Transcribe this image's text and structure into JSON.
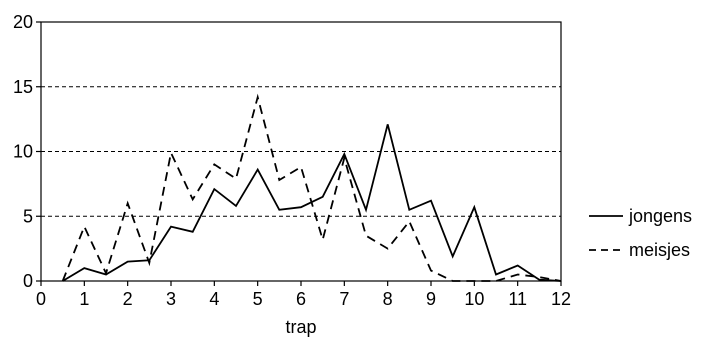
{
  "chart_data": {
    "type": "line",
    "title": "",
    "xlabel": "trap",
    "ylabel": "",
    "xlim": [
      0,
      12
    ],
    "ylim": [
      0,
      20
    ],
    "xticks": [
      "0",
      "1",
      "2",
      "3",
      "4",
      "5",
      "6",
      "7",
      "8",
      "9",
      "10",
      "11",
      "12"
    ],
    "yticks": [
      "0",
      "5",
      "10",
      "15",
      "20"
    ],
    "grid": "horizontal dashed lines at 5, 10, 15",
    "legend_position": "right",
    "series": [
      {
        "name": "jongens",
        "style": "solid",
        "color": "#000000",
        "x": [
          0.5,
          1,
          1.5,
          2,
          2.5,
          3,
          3.5,
          4,
          4.5,
          5,
          5.5,
          6,
          6.5,
          7,
          7.5,
          8,
          8.5,
          9,
          9.5,
          10,
          10.5,
          11,
          11.5,
          12
        ],
        "y": [
          0,
          1,
          0.5,
          1.5,
          1.6,
          4.2,
          3.8,
          7.1,
          5.8,
          8.6,
          5.5,
          5.7,
          6.5,
          9.8,
          5.5,
          12.1,
          5.5,
          6.2,
          1.9,
          5.7,
          0.5,
          1.2,
          0.1,
          0
        ]
      },
      {
        "name": "meisjes",
        "style": "dashed",
        "color": "#000000",
        "x": [
          0.5,
          1,
          1.5,
          2,
          2.5,
          3,
          3.5,
          4,
          4.5,
          5,
          5.5,
          6,
          6.5,
          7,
          7.5,
          8,
          8.5,
          9,
          9.5,
          10,
          10.5,
          11,
          11.5,
          12
        ],
        "y": [
          0,
          4.2,
          0.6,
          6.0,
          1.4,
          9.9,
          6.3,
          9.0,
          7.9,
          14.2,
          7.8,
          8.8,
          3.2,
          9.5,
          3.5,
          2.5,
          4.6,
          0.8,
          0,
          0,
          0,
          0.5,
          0.3,
          0
        ]
      }
    ]
  }
}
